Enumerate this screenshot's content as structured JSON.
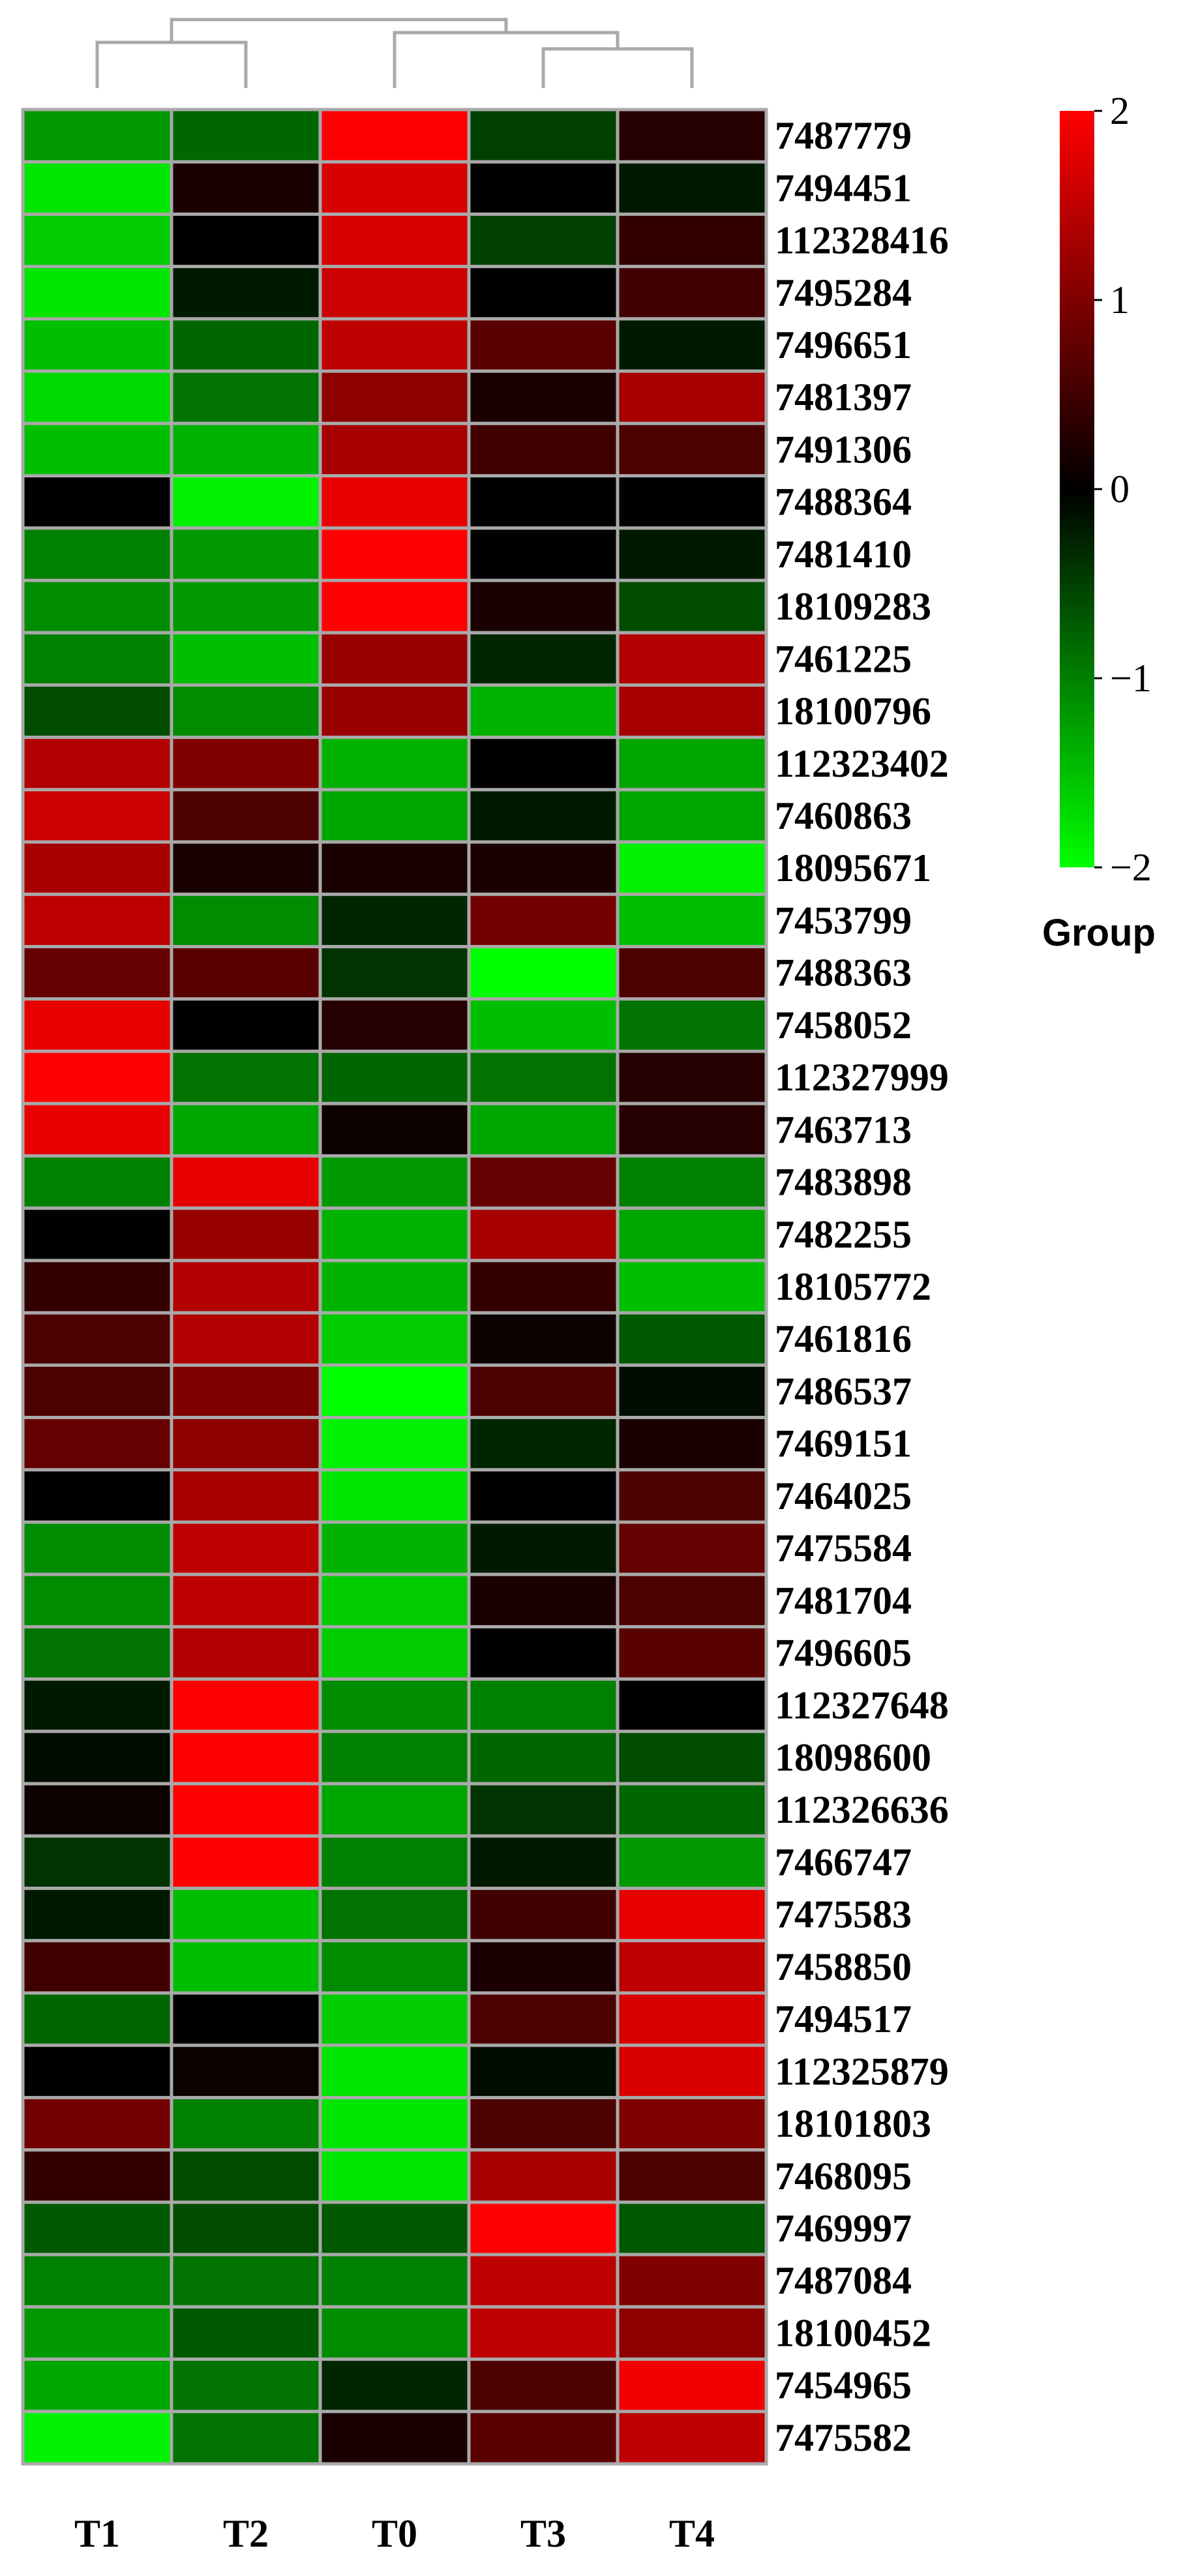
{
  "chart_data": {
    "type": "heatmap",
    "columns": [
      "T1",
      "T2",
      "T0",
      "T3",
      "T4"
    ],
    "rows": [
      "7487779",
      "7494451",
      "112328416",
      "7495284",
      "7496651",
      "7481397",
      "7491306",
      "7488364",
      "7481410",
      "18109283",
      "7461225",
      "18100796",
      "112323402",
      "7460863",
      "18095671",
      "7453799",
      "7488363",
      "7458052",
      "112327999",
      "7463713",
      "7483898",
      "7482255",
      "18105772",
      "7461816",
      "7486537",
      "7469151",
      "7464025",
      "7475584",
      "7481704",
      "7496605",
      "112327648",
      "18098600",
      "112326636",
      "7466747",
      "7475583",
      "7458850",
      "7494517",
      "112325879",
      "18101803",
      "7468095",
      "7469997",
      "7487084",
      "18100452",
      "7454965",
      "7475582"
    ],
    "values": [
      [
        -1.2,
        -0.8,
        2.0,
        -0.5,
        0.3
      ],
      [
        -1.8,
        0.2,
        1.7,
        0.0,
        -0.2
      ],
      [
        -1.6,
        0.0,
        1.7,
        -0.5,
        0.4
      ],
      [
        -1.8,
        -0.2,
        1.6,
        0.0,
        0.5
      ],
      [
        -1.5,
        -0.8,
        1.5,
        0.7,
        -0.2
      ],
      [
        -1.7,
        -0.9,
        1.1,
        0.2,
        1.3
      ],
      [
        -1.5,
        -1.4,
        1.3,
        0.5,
        0.6
      ],
      [
        0.0,
        -1.9,
        1.8,
        0.0,
        0.0
      ],
      [
        -1.0,
        -1.2,
        2.0,
        0.0,
        -0.2
      ],
      [
        -1.1,
        -1.2,
        2.0,
        0.2,
        -0.6
      ],
      [
        -1.0,
        -1.5,
        1.2,
        -0.3,
        1.4
      ],
      [
        -0.6,
        -1.1,
        1.2,
        -1.4,
        1.3
      ],
      [
        1.4,
        1.0,
        -1.4,
        0.0,
        -1.3
      ],
      [
        1.6,
        0.6,
        -1.3,
        -0.2,
        -1.3
      ],
      [
        1.3,
        0.2,
        0.2,
        0.2,
        -1.9
      ],
      [
        1.5,
        -1.1,
        -0.3,
        0.9,
        -1.5
      ],
      [
        0.8,
        0.7,
        -0.4,
        -2.0,
        0.6
      ],
      [
        1.8,
        0.0,
        0.3,
        -1.5,
        -0.9
      ],
      [
        2.0,
        -0.9,
        -0.8,
        -0.9,
        0.3
      ],
      [
        1.8,
        -1.3,
        0.1,
        -1.3,
        0.3
      ],
      [
        -1.0,
        1.8,
        -1.2,
        0.8,
        -1.0
      ],
      [
        0.0,
        1.2,
        -1.4,
        1.3,
        -1.3
      ],
      [
        0.4,
        1.4,
        -1.4,
        0.4,
        -1.5
      ],
      [
        0.6,
        1.4,
        -1.6,
        0.1,
        -0.7
      ],
      [
        0.6,
        1.0,
        -2.0,
        0.6,
        -0.1
      ],
      [
        0.8,
        1.1,
        -1.9,
        -0.3,
        0.2
      ],
      [
        0.0,
        1.3,
        -1.8,
        0.0,
        0.6
      ],
      [
        -1.1,
        1.5,
        -1.4,
        -0.2,
        0.8
      ],
      [
        -1.1,
        1.5,
        -1.6,
        0.2,
        0.6
      ],
      [
        -0.9,
        1.4,
        -1.6,
        0.0,
        0.7
      ],
      [
        -0.2,
        2.0,
        -1.1,
        -1.0,
        0.0
      ],
      [
        -0.1,
        2.0,
        -1.0,
        -0.8,
        -0.6
      ],
      [
        0.1,
        2.0,
        -1.3,
        -0.4,
        -0.8
      ],
      [
        -0.4,
        2.0,
        -1.0,
        -0.2,
        -1.2
      ],
      [
        -0.2,
        -1.5,
        -0.9,
        0.5,
        1.8
      ],
      [
        0.5,
        -1.5,
        -1.1,
        0.2,
        1.5
      ],
      [
        -0.8,
        0.0,
        -1.6,
        0.6,
        1.7
      ],
      [
        0.0,
        0.1,
        -1.8,
        -0.1,
        1.7
      ],
      [
        0.9,
        -1.0,
        -1.8,
        0.6,
        1.0
      ],
      [
        0.4,
        -0.6,
        -1.8,
        1.3,
        0.6
      ],
      [
        -0.7,
        -0.6,
        -0.7,
        2.0,
        -0.7
      ],
      [
        -1.0,
        -0.9,
        -1.0,
        1.5,
        1.0
      ],
      [
        -1.2,
        -0.7,
        -1.1,
        1.5,
        1.1
      ],
      [
        -1.3,
        -0.9,
        -0.3,
        0.6,
        1.9
      ],
      [
        -1.9,
        -0.9,
        0.2,
        0.7,
        1.5
      ]
    ],
    "color_scale": {
      "min": -2,
      "max": 2,
      "low_color": "#00ff00",
      "mid_color": "#000000",
      "high_color": "#ff0000",
      "ticks": [
        2,
        1,
        0,
        -1,
        -2
      ],
      "tick_labels": [
        "2",
        "1",
        "0",
        "−1",
        "−2"
      ],
      "legend_title": "Group",
      "legend_position": "top-right"
    },
    "column_dendrogram": {
      "order": [
        "T1",
        "T2",
        "T0",
        "T3",
        "T4"
      ],
      "clusters": [
        [
          "T1",
          "T2"
        ],
        [
          "T3",
          "T4"
        ],
        [
          "T0",
          [
            "T3",
            "T4"
          ]
        ],
        [
          [
            "T1",
            "T2"
          ],
          [
            "T0",
            [
              "T3",
              "T4"
            ]
          ]
        ]
      ]
    },
    "grid_line_color": "#a9a9a9"
  }
}
